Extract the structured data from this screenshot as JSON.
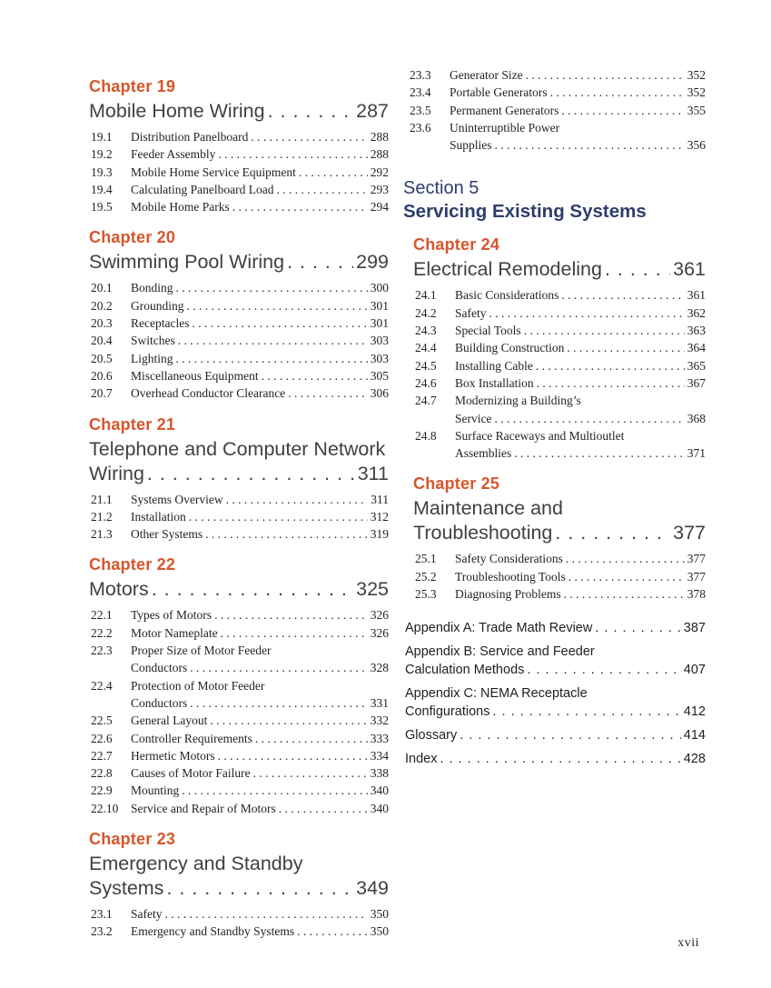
{
  "page": {
    "footer": "xvii"
  },
  "colors": {
    "chapter": "#d6562c",
    "section": "#2d3e6c",
    "title": "#414042",
    "body": "#231f20"
  },
  "columns": [
    {
      "name": "left",
      "blocks": [
        {
          "type": "chapter",
          "heading": "Chapter 19",
          "title_lines": [
            "Mobile Home Wiring"
          ],
          "page": "287",
          "items": [
            {
              "num": "19.1",
              "lines": [
                "Distribution Panelboard"
              ],
              "page": "288"
            },
            {
              "num": "19.2",
              "lines": [
                "Feeder Assembly"
              ],
              "page": "288"
            },
            {
              "num": "19.3",
              "lines": [
                "Mobile Home Service Equipment"
              ],
              "page": "292"
            },
            {
              "num": "19.4",
              "lines": [
                "Calculating Panelboard Load"
              ],
              "page": "293"
            },
            {
              "num": "19.5",
              "lines": [
                "Mobile Home Parks"
              ],
              "page": "294"
            }
          ]
        },
        {
          "type": "chapter",
          "heading": "Chapter 20",
          "title_lines": [
            "Swimming Pool Wiring"
          ],
          "page": "299",
          "items": [
            {
              "num": "20.1",
              "lines": [
                "Bonding"
              ],
              "page": "300"
            },
            {
              "num": "20.2",
              "lines": [
                "Grounding"
              ],
              "page": "301"
            },
            {
              "num": "20.3",
              "lines": [
                "Receptacles"
              ],
              "page": "301"
            },
            {
              "num": "20.4",
              "lines": [
                "Switches"
              ],
              "page": "303"
            },
            {
              "num": "20.5",
              "lines": [
                "Lighting"
              ],
              "page": "303"
            },
            {
              "num": "20.6",
              "lines": [
                "Miscellaneous Equipment"
              ],
              "page": "305"
            },
            {
              "num": "20.7",
              "lines": [
                "Overhead Conductor Clearance"
              ],
              "page": "306"
            }
          ]
        },
        {
          "type": "chapter",
          "heading": "Chapter 21",
          "title_lines": [
            "Telephone and Computer Network",
            "Wiring"
          ],
          "page": "311",
          "items": [
            {
              "num": "21.1",
              "lines": [
                "Systems Overview"
              ],
              "page": "311"
            },
            {
              "num": "21.2",
              "lines": [
                "Installation"
              ],
              "page": "312"
            },
            {
              "num": "21.3",
              "lines": [
                "Other Systems"
              ],
              "page": "319"
            }
          ]
        },
        {
          "type": "chapter",
          "heading": "Chapter 22",
          "title_lines": [
            "Motors"
          ],
          "page": "325",
          "items": [
            {
              "num": "22.1",
              "lines": [
                "Types of Motors"
              ],
              "page": "326"
            },
            {
              "num": "22.2",
              "lines": [
                "Motor Nameplate"
              ],
              "page": "326"
            },
            {
              "num": "22.3",
              "lines": [
                "Proper Size of Motor Feeder",
                "Conductors"
              ],
              "page": "328"
            },
            {
              "num": "22.4",
              "lines": [
                "Protection of Motor Feeder",
                "Conductors"
              ],
              "page": "331"
            },
            {
              "num": "22.5",
              "lines": [
                "General Layout"
              ],
              "page": "332"
            },
            {
              "num": "22.6",
              "lines": [
                "Controller Requirements"
              ],
              "page": "333"
            },
            {
              "num": "22.7",
              "lines": [
                "Hermetic Motors"
              ],
              "page": "334"
            },
            {
              "num": "22.8",
              "lines": [
                "Causes of Motor Failure"
              ],
              "page": "338"
            },
            {
              "num": "22.9",
              "lines": [
                "Mounting"
              ],
              "page": "340"
            },
            {
              "num": "22.10",
              "lines": [
                "Service and Repair of Motors"
              ],
              "page": "340"
            }
          ]
        },
        {
          "type": "chapter",
          "heading": "Chapter 23",
          "title_lines": [
            "Emergency and Standby",
            "Systems"
          ],
          "page": "349",
          "items": [
            {
              "num": "23.1",
              "lines": [
                "Safety"
              ],
              "page": "350"
            },
            {
              "num": "23.2",
              "lines": [
                "Emergency and Standby Systems"
              ],
              "page": "350"
            }
          ]
        }
      ]
    },
    {
      "name": "right",
      "blocks": [
        {
          "type": "continuation",
          "items": [
            {
              "num": "23.3",
              "lines": [
                "Generator Size"
              ],
              "page": "352"
            },
            {
              "num": "23.4",
              "lines": [
                "Portable Generators"
              ],
              "page": "352"
            },
            {
              "num": "23.5",
              "lines": [
                "Permanent Generators"
              ],
              "page": "355"
            },
            {
              "num": "23.6",
              "lines": [
                "Uninterruptible Power",
                "Supplies"
              ],
              "page": "356"
            }
          ]
        },
        {
          "type": "section",
          "kicker": "Section 5",
          "title": "Servicing Existing Systems"
        },
        {
          "type": "chapter",
          "heading": "Chapter 24",
          "title_lines": [
            "Electrical Remodeling"
          ],
          "page": "361",
          "items": [
            {
              "num": "24.1",
              "lines": [
                "Basic Considerations"
              ],
              "page": "361"
            },
            {
              "num": "24.2",
              "lines": [
                "Safety"
              ],
              "page": "362"
            },
            {
              "num": "24.3",
              "lines": [
                "Special Tools"
              ],
              "page": "363"
            },
            {
              "num": "24.4",
              "lines": [
                "Building Construction"
              ],
              "page": "364"
            },
            {
              "num": "24.5",
              "lines": [
                "Installing Cable"
              ],
              "page": "365"
            },
            {
              "num": "24.6",
              "lines": [
                "Box Installation"
              ],
              "page": "367"
            },
            {
              "num": "24.7",
              "lines": [
                "Modernizing a Building’s",
                "Service"
              ],
              "page": "368"
            },
            {
              "num": "24.8",
              "lines": [
                "Surface Raceways and Multioutlet",
                "Assemblies"
              ],
              "page": "371"
            }
          ]
        },
        {
          "type": "chapter",
          "heading": "Chapter 25",
          "title_lines": [
            "Maintenance and",
            "Troubleshooting"
          ],
          "page": "377",
          "items": [
            {
              "num": "25.1",
              "lines": [
                "Safety Considerations"
              ],
              "page": "377"
            },
            {
              "num": "25.2",
              "lines": [
                "Troubleshooting Tools"
              ],
              "page": "377"
            },
            {
              "num": "25.3",
              "lines": [
                "Diagnosing Problems"
              ],
              "page": "378"
            }
          ]
        },
        {
          "type": "backmatter",
          "entries": [
            {
              "lines": [
                "Appendix A: Trade Math Review"
              ],
              "page": "387"
            },
            {
              "lines": [
                "Appendix B: Service and Feeder",
                "Calculation Methods"
              ],
              "page": "407"
            },
            {
              "lines": [
                "Appendix C: NEMA Receptacle",
                "Configurations"
              ],
              "page": "412"
            },
            {
              "lines": [
                "Glossary"
              ],
              "page": "414"
            },
            {
              "lines": [
                "Index"
              ],
              "page": "428"
            }
          ]
        }
      ]
    }
  ]
}
